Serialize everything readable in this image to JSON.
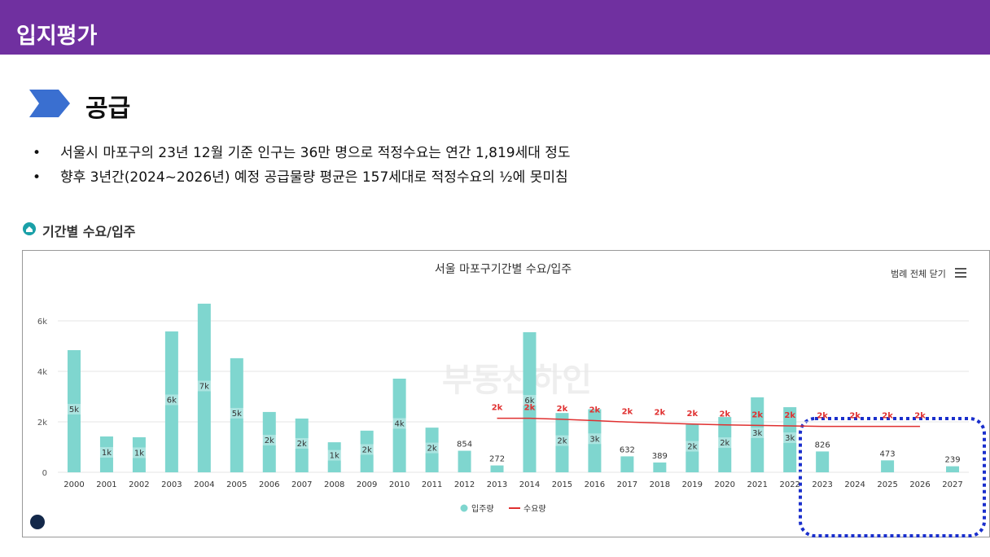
{
  "header": {
    "title": "입지평가"
  },
  "section": {
    "title": "공급",
    "bullets": [
      "서울시 마포구의 23년 12월 기준 인구는 36만 명으로 적정수요는 연간 1,819세대 정도",
      "향후 3년간(2024~2026년) 예정 공급물량 평균은 157세대로 적정수요의 ½에 못미침"
    ],
    "chart_label": "기간별 수요/입주"
  },
  "chart_data": {
    "type": "bar",
    "title": "서울 마포구기간별 수요/입주",
    "legend_button": "범례 전체 닫기",
    "watermark": "부동산하인",
    "categories": [
      "2000",
      "2001",
      "2002",
      "2003",
      "2004",
      "2005",
      "2006",
      "2007",
      "2008",
      "2009",
      "2010",
      "2011",
      "2012",
      "2013",
      "2014",
      "2015",
      "2016",
      "2017",
      "2018",
      "2019",
      "2020",
      "2021",
      "2022",
      "2023",
      "2024",
      "2025",
      "2026",
      "2027"
    ],
    "series": [
      {
        "name": "입주량",
        "type": "bar",
        "color": "#7fd6cf",
        "values": [
          4840,
          1420,
          1390,
          5580,
          6680,
          4520,
          2390,
          2130,
          1190,
          1650,
          3710,
          1770,
          854,
          272,
          5550,
          2350,
          2500,
          632,
          389,
          1900,
          2190,
          2970,
          2580,
          826,
          null,
          473,
          null,
          239
        ],
        "value_labels": [
          "5k",
          "1k",
          "1k",
          "6k",
          "7k",
          "5k",
          "2k",
          "2k",
          "1k",
          "2k",
          "4k",
          "2k",
          "854",
          "272",
          "6k",
          "2k",
          "3k",
          "632",
          "389",
          "2k",
          "2k",
          "3k",
          "3k",
          "826",
          null,
          "473",
          null,
          "239"
        ]
      },
      {
        "name": "수요량",
        "type": "line",
        "color": "#e03030",
        "values": [
          null,
          null,
          null,
          null,
          null,
          null,
          null,
          null,
          null,
          null,
          null,
          null,
          null,
          2140,
          2140,
          2100,
          2050,
          1990,
          1950,
          1910,
          1880,
          1860,
          1840,
          1819,
          1819,
          1819,
          1819,
          null
        ],
        "value_labels": [
          null,
          null,
          null,
          null,
          null,
          null,
          null,
          null,
          null,
          null,
          null,
          null,
          null,
          "2k",
          "2k",
          "2k",
          "2k",
          "2k",
          "2k",
          "2k",
          "2k",
          "2k",
          "2k",
          "2k",
          "2k",
          "2k",
          "2k",
          null
        ]
      }
    ],
    "ylim": [
      0,
      7000
    ],
    "yticks": [
      0,
      {
        "value": 2000,
        "label": "2k"
      },
      {
        "value": 4000,
        "label": "4k"
      },
      {
        "value": 6000,
        "label": "6k"
      }
    ],
    "grid": true,
    "legend": "bottom"
  }
}
